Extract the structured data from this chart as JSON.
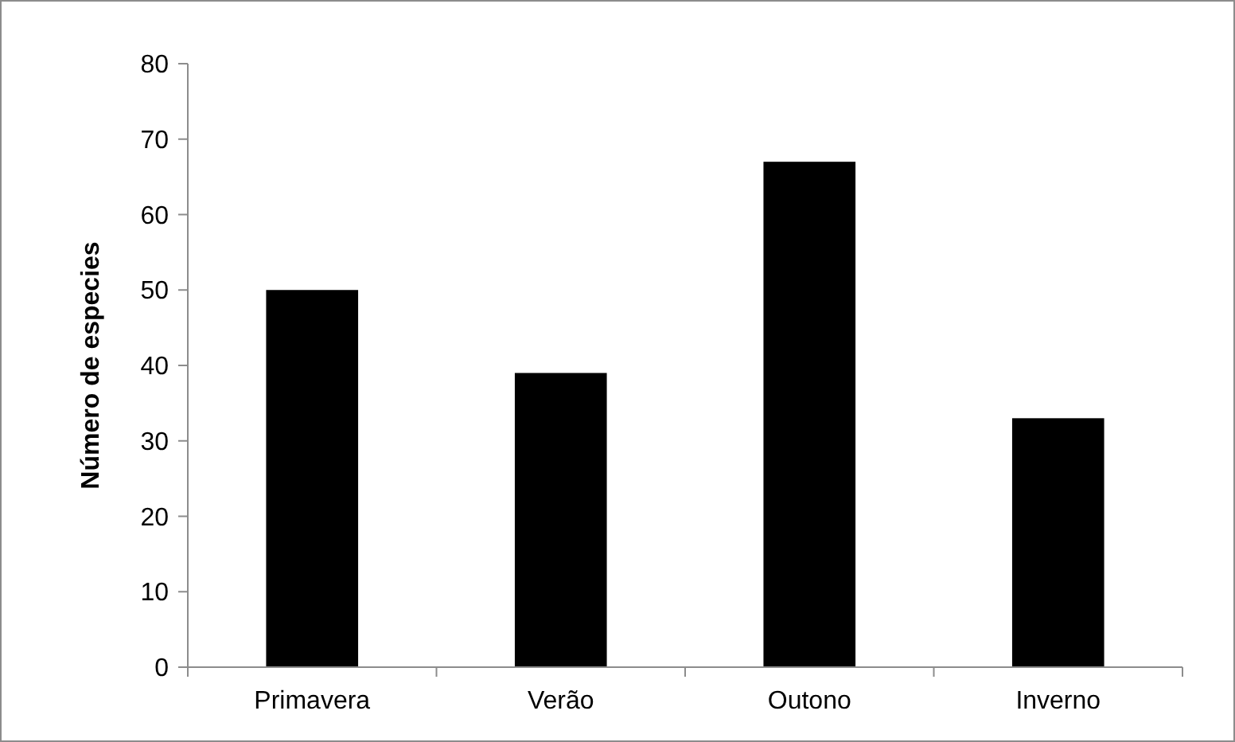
{
  "chart_data": {
    "type": "bar",
    "ylabel": "Número de especies",
    "categories": [
      "Primavera",
      "Verão",
      "Outono",
      "Inverno"
    ],
    "values": [
      50,
      39,
      67,
      33
    ],
    "color": "#000000",
    "ylim": [
      0,
      80
    ],
    "yticks": [
      0,
      10,
      20,
      30,
      40,
      50,
      60,
      70,
      80
    ],
    "grid": false
  }
}
